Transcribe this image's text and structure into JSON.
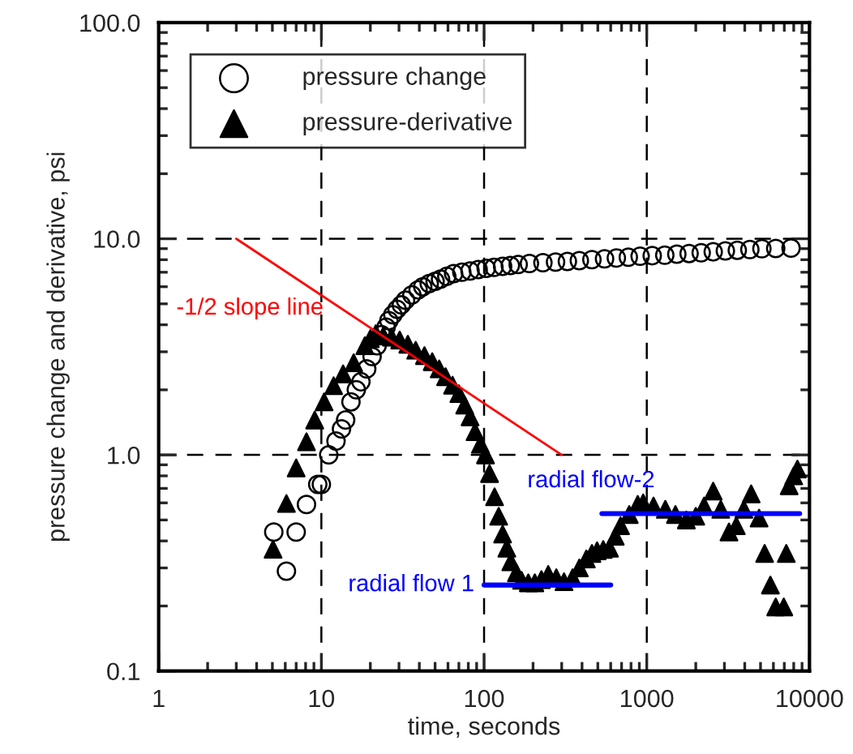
{
  "chart_data": {
    "type": "scatter",
    "xlabel": "time, seconds",
    "ylabel": "pressure change and derivative, psi",
    "log": "xy",
    "grid": true,
    "legend": "top left",
    "xlim": [
      1,
      10000
    ],
    "xticks": [
      1,
      10,
      100,
      1000,
      10000
    ],
    "ylim": [
      0.1,
      100
    ],
    "yticks": [
      {
        "value": 0.1,
        "label": "0.1"
      },
      {
        "value": 1,
        "label": "1.0"
      },
      {
        "value": 10,
        "label": "10.0"
      },
      {
        "value": 100,
        "label": "100.0"
      }
    ],
    "series": [
      {
        "name": "pressure change",
        "marker": "circle",
        "color": "#000000",
        "x": [
          5.1,
          6.1,
          7.0,
          8.1,
          9.5,
          10,
          11.1,
          12.3,
          13.3,
          14.1,
          15.2,
          16.4,
          17.5,
          19,
          20.5,
          22,
          23.4,
          25,
          26,
          27.5,
          29.2,
          31,
          32.9,
          36,
          39.3,
          42,
          46,
          50,
          54,
          59,
          65,
          73,
          82,
          92,
          103,
          115,
          130,
          145,
          162,
          190,
          230,
          275,
          325,
          385,
          460,
          550,
          650,
          770,
          910,
          1080,
          1290,
          1530,
          1820,
          2160,
          2560,
          3040,
          3600,
          4300,
          5100,
          6200,
          7700
        ],
        "values": [
          0.44,
          0.29,
          0.44,
          0.59,
          0.73,
          0.73,
          1.0,
          1.16,
          1.32,
          1.45,
          1.76,
          2.0,
          2.18,
          2.5,
          2.85,
          3.2,
          3.6,
          3.9,
          4.18,
          4.45,
          4.72,
          4.95,
          5.2,
          5.5,
          5.8,
          6.0,
          6.2,
          6.35,
          6.5,
          6.7,
          6.9,
          7.0,
          7.1,
          7.2,
          7.3,
          7.38,
          7.45,
          7.52,
          7.6,
          7.68,
          7.75,
          7.8,
          7.85,
          7.92,
          8.0,
          8.07,
          8.15,
          8.22,
          8.3,
          8.35,
          8.4,
          8.48,
          8.55,
          8.62,
          8.7,
          8.78,
          8.85,
          8.92,
          9.0,
          9.02,
          9.05
        ]
      },
      {
        "name": "pressure-derivative",
        "marker": "triangle",
        "color": "#000000",
        "x": [
          5.05,
          6.1,
          7.0,
          8.1,
          9.1,
          10.4,
          11.9,
          13.6,
          15.8,
          18.5,
          20,
          21.6,
          24,
          27,
          30.3,
          34,
          38,
          43,
          48,
          53,
          58,
          64,
          70,
          76,
          82,
          88,
          95,
          102,
          108,
          116,
          123,
          130,
          138,
          146,
          158,
          170,
          187,
          205,
          225,
          248,
          278,
          310,
          350,
          385,
          425,
          460,
          495,
          540,
          590,
          640,
          690,
          780,
          880,
          950,
          1100,
          1300,
          1500,
          1750,
          2000,
          2250,
          2560,
          2850,
          3200,
          3550,
          3950,
          4380,
          4900,
          5300,
          5750,
          6200,
          6950,
          7200,
          7500,
          8000,
          8430
        ],
        "values": [
          0.366,
          0.596,
          0.87,
          1.15,
          1.45,
          1.76,
          2.09,
          2.37,
          2.67,
          3.2,
          3.45,
          3.64,
          3.55,
          3.5,
          3.4,
          3.25,
          3.05,
          2.88,
          2.7,
          2.5,
          2.3,
          2.1,
          1.92,
          1.7,
          1.5,
          1.28,
          1.12,
          1.0,
          0.82,
          0.64,
          0.52,
          0.43,
          0.37,
          0.32,
          0.285,
          0.263,
          0.256,
          0.256,
          0.265,
          0.28,
          0.27,
          0.259,
          0.27,
          0.3,
          0.33,
          0.35,
          0.36,
          0.365,
          0.37,
          0.42,
          0.47,
          0.53,
          0.59,
          0.6,
          0.58,
          0.56,
          0.53,
          0.5,
          0.52,
          0.58,
          0.68,
          0.56,
          0.44,
          0.47,
          0.56,
          0.66,
          0.51,
          0.35,
          0.25,
          0.198,
          0.198,
          0.35,
          0.72,
          0.8,
          0.86
        ]
      },
      {
        "name": "-1/2 slope line",
        "type": "line",
        "color": "#ff0000",
        "x": [
          3,
          300
        ],
        "values": [
          10,
          1
        ]
      },
      {
        "name": "radial flow 1",
        "type": "line",
        "color": "#0000ff",
        "x": [
          100,
          600
        ],
        "values": [
          0.25,
          0.25
        ]
      },
      {
        "name": "radial flow-2",
        "type": "line",
        "color": "#0000ff",
        "x": [
          530,
          8700
        ],
        "values": [
          0.535,
          0.535
        ]
      }
    ]
  }
}
